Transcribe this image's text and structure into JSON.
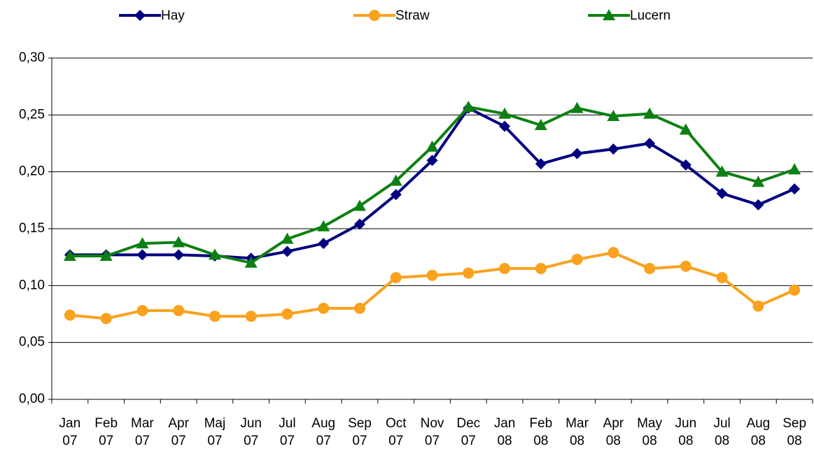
{
  "chart_data": {
    "type": "line",
    "categories": [
      [
        "Jan",
        "07"
      ],
      [
        "Feb",
        "07"
      ],
      [
        "Mar",
        "07"
      ],
      [
        "Apr",
        "07"
      ],
      [
        "Maj",
        "07"
      ],
      [
        "Jun",
        "07"
      ],
      [
        "Jul",
        "07"
      ],
      [
        "Aug",
        "07"
      ],
      [
        "Sep",
        "07"
      ],
      [
        "Oct",
        "07"
      ],
      [
        "Nov",
        "07"
      ],
      [
        "Dec",
        "07"
      ],
      [
        "Jan",
        "08"
      ],
      [
        "Feb",
        "08"
      ],
      [
        "Mar",
        "08"
      ],
      [
        "Apr",
        "08"
      ],
      [
        "May",
        "08"
      ],
      [
        "Jun",
        "08"
      ],
      [
        "Jul",
        "08"
      ],
      [
        "Aug",
        "08"
      ],
      [
        "Sep",
        "08"
      ]
    ],
    "series": [
      {
        "name": "Hay",
        "color": "#000080",
        "marker": "diamond",
        "values": [
          0.127,
          0.127,
          0.127,
          0.127,
          0.126,
          0.124,
          0.13,
          0.137,
          0.154,
          0.18,
          0.21,
          0.256,
          0.24,
          0.207,
          0.216,
          0.22,
          0.225,
          0.206,
          0.181,
          0.171,
          0.185
        ]
      },
      {
        "name": "Straw",
        "color": "#f9a21e",
        "marker": "circle",
        "values": [
          0.074,
          0.071,
          0.078,
          0.078,
          0.073,
          0.073,
          0.075,
          0.08,
          0.08,
          0.107,
          0.109,
          0.111,
          0.115,
          0.115,
          0.123,
          0.129,
          0.115,
          0.117,
          0.107,
          0.082,
          0.096
        ]
      },
      {
        "name": "Lucern",
        "color": "#0e8013",
        "marker": "triangle",
        "values": [
          0.126,
          0.126,
          0.137,
          0.138,
          0.127,
          0.12,
          0.141,
          0.152,
          0.17,
          0.192,
          0.222,
          0.257,
          0.251,
          0.241,
          0.256,
          0.249,
          0.251,
          0.237,
          0.2,
          0.191,
          0.202
        ]
      }
    ],
    "ylim": [
      0,
      0.3
    ],
    "yticks": [
      {
        "value": 0,
        "label": "0,00"
      },
      {
        "value": 0.05,
        "label": "0,05"
      },
      {
        "value": 0.1,
        "label": "0,10"
      },
      {
        "value": 0.15,
        "label": "0,15"
      },
      {
        "value": 0.2,
        "label": "0,20"
      },
      {
        "value": 0.25,
        "label": "0,25"
      },
      {
        "value": 0.3,
        "label": "0,30"
      }
    ],
    "grid": true,
    "legend": "top"
  }
}
